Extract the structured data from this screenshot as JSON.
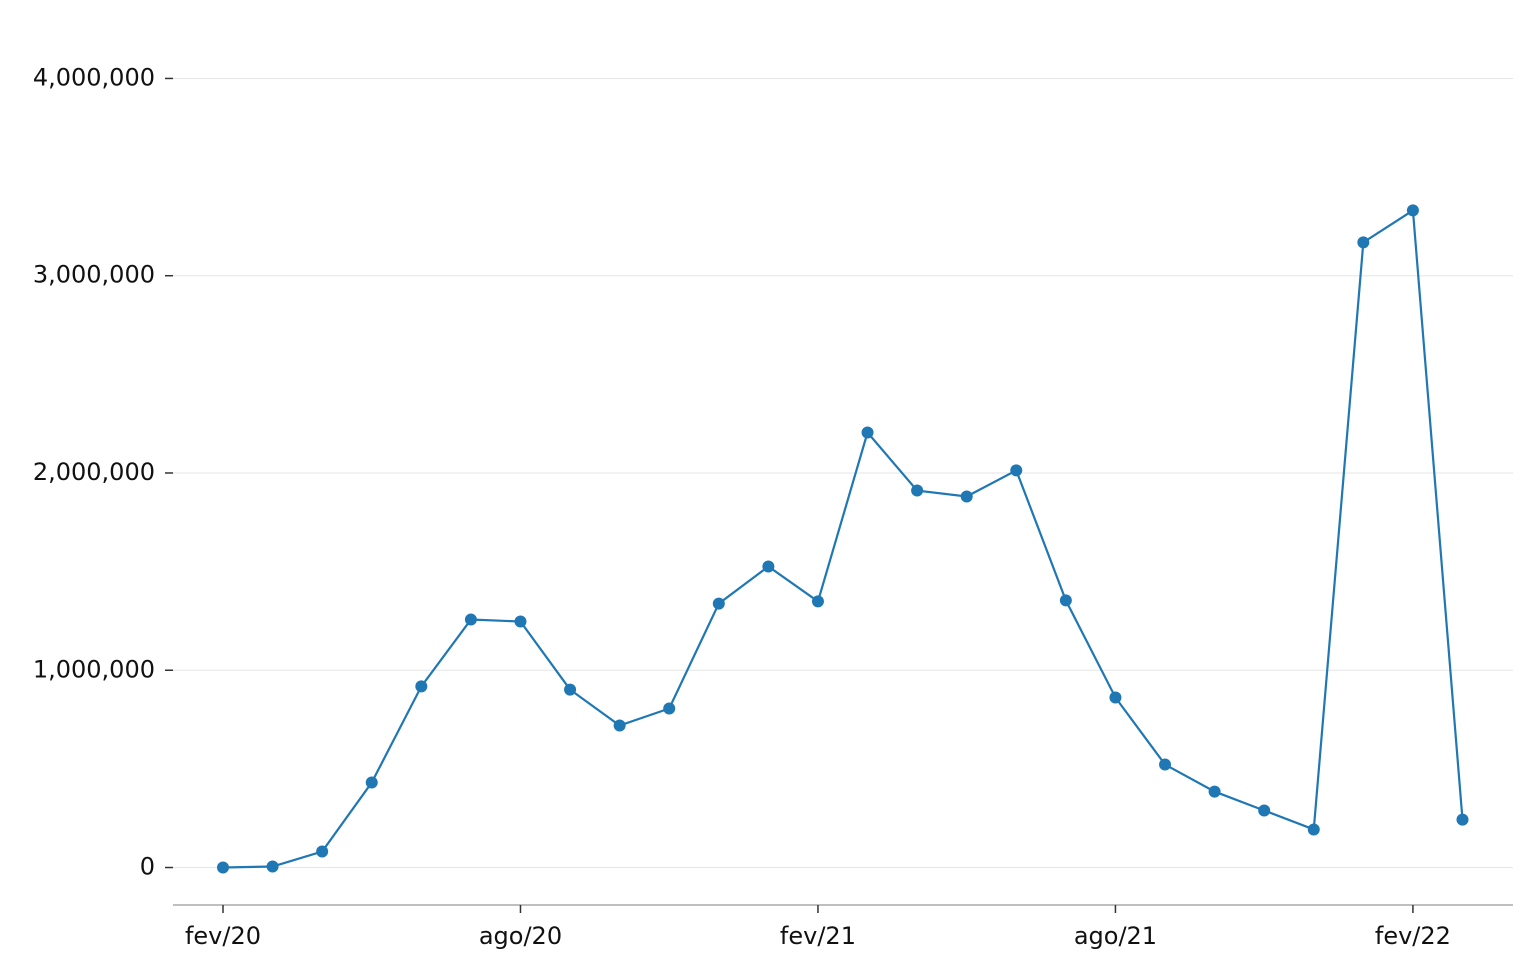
{
  "chart_data": {
    "type": "line",
    "categories": [
      "fev/20",
      null,
      null,
      null,
      null,
      null,
      "ago/20",
      null,
      null,
      null,
      null,
      null,
      "fev/21",
      null,
      null,
      null,
      null,
      null,
      "ago/21",
      null,
      null,
      null,
      null,
      null,
      "fev/22",
      null
    ],
    "series": [
      {
        "color": "#1f77b4",
        "values": [
          0,
          5000,
          81000,
          431000,
          918000,
          1257000,
          1247000,
          902000,
          720000,
          806000,
          1338000,
          1526000,
          1349000,
          2205000,
          1911000,
          1881000,
          2013000,
          1354000,
          862000,
          522000,
          385000,
          289000,
          193000,
          3169000,
          3331000,
          243000
        ]
      }
    ],
    "ylim": [
      -190000,
      4200000
    ],
    "yticks": [
      0,
      {
        "value": 1000000,
        "label": "1,000,000"
      },
      {
        "value": 2000000,
        "label": "2,000,000"
      },
      {
        "value": 3000000,
        "label": "3,000,000"
      },
      {
        "value": 4000000,
        "label": "4,000,000"
      }
    ],
    "grid": true
  }
}
